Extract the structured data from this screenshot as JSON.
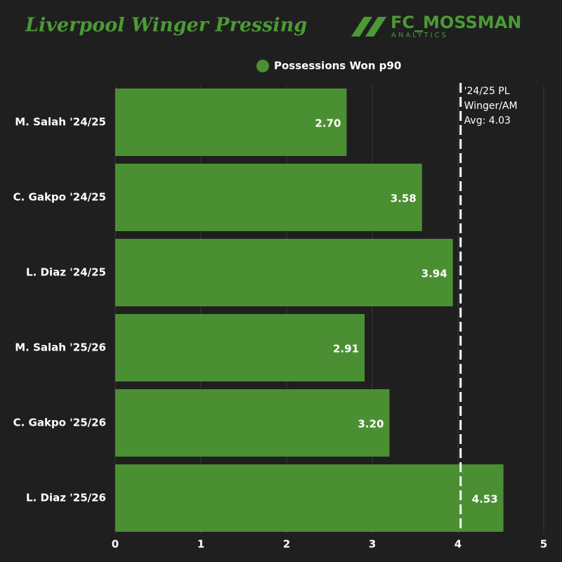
{
  "chart_data": {
    "type": "barh",
    "title": "Liverpool Winger Pressing",
    "brand": {
      "name": "FC_MOSSMAN",
      "sub": "ANALYTICS"
    },
    "categories": [
      "M. Salah '24/25",
      "C. Gakpo '24/25",
      "L. Diaz '24/25",
      "M. Salah '25/26",
      "C. Gakpo '25/26",
      "L. Diaz '25/26"
    ],
    "series": [
      {
        "name": "Possessions Won p90",
        "color": "#4b8f33",
        "values": [
          2.7,
          3.58,
          3.94,
          2.91,
          3.2,
          4.53
        ],
        "value_labels": [
          "2.70",
          "3.58",
          "3.94",
          "2.91",
          "3.20",
          "4.53"
        ]
      }
    ],
    "xlim": [
      0,
      5
    ],
    "xticks": [
      0,
      1,
      2,
      3,
      4,
      5
    ],
    "grid": true,
    "reference_line": {
      "value": 4.03,
      "label": [
        "'24/25 PL",
        "Winger/AM",
        "Avg: 4.03"
      ]
    }
  }
}
